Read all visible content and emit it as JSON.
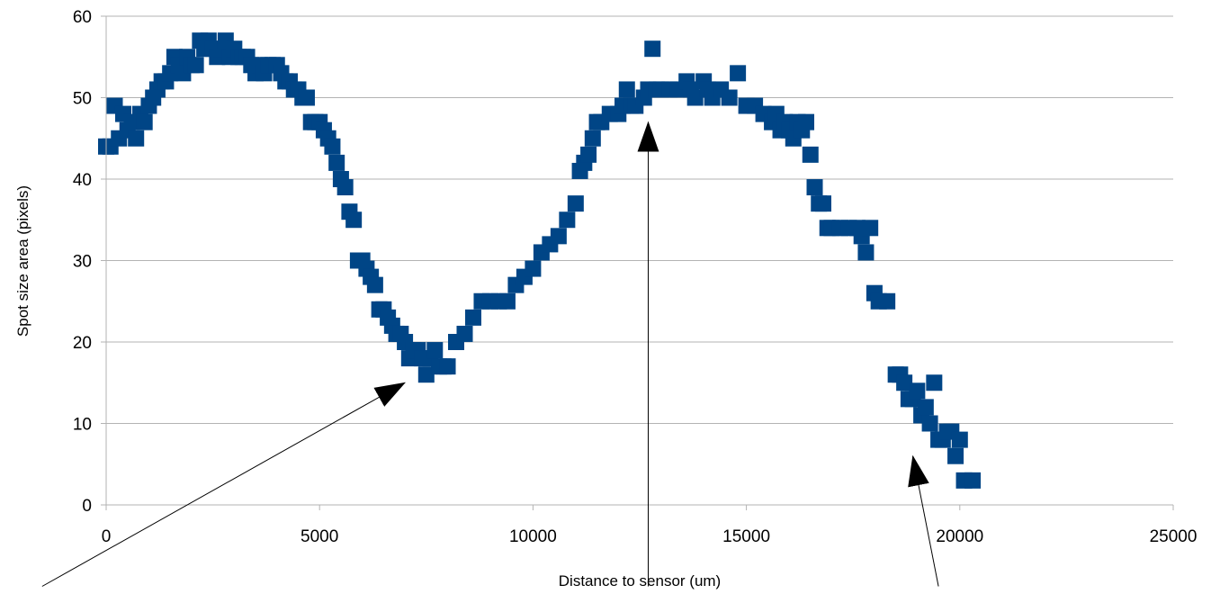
{
  "chart_data": {
    "type": "scatter",
    "title": "",
    "xlabel": "Distance to sensor (um)",
    "ylabel": "Spot size area (pixels)",
    "xlim": [
      0,
      25000
    ],
    "ylim": [
      0,
      60
    ],
    "x_ticks": [
      "0",
      "5000",
      "10000",
      "15000",
      "20000",
      "25000"
    ],
    "y_ticks": [
      "0",
      "10",
      "20",
      "30",
      "40",
      "50",
      "60"
    ],
    "grid": "horizontal",
    "legend": "none",
    "marker": "square",
    "series_color": "#004586",
    "series": [
      {
        "points": [
          [
            0,
            44
          ],
          [
            100,
            44
          ],
          [
            200,
            49
          ],
          [
            300,
            45
          ],
          [
            400,
            48
          ],
          [
            500,
            46
          ],
          [
            600,
            47
          ],
          [
            700,
            45
          ],
          [
            800,
            48
          ],
          [
            900,
            47
          ],
          [
            1000,
            49
          ],
          [
            1100,
            50
          ],
          [
            1200,
            51
          ],
          [
            1300,
            52
          ],
          [
            1400,
            52
          ],
          [
            1500,
            53
          ],
          [
            1600,
            55
          ],
          [
            1700,
            54
          ],
          [
            1800,
            53
          ],
          [
            1900,
            55
          ],
          [
            2000,
            54
          ],
          [
            2100,
            54
          ],
          [
            2200,
            57
          ],
          [
            2300,
            56
          ],
          [
            2400,
            57
          ],
          [
            2500,
            56
          ],
          [
            2600,
            55
          ],
          [
            2700,
            56
          ],
          [
            2800,
            57
          ],
          [
            2900,
            55
          ],
          [
            3000,
            56
          ],
          [
            3100,
            55
          ],
          [
            3200,
            55
          ],
          [
            3300,
            55
          ],
          [
            3400,
            54
          ],
          [
            3500,
            53
          ],
          [
            3600,
            54
          ],
          [
            3700,
            53
          ],
          [
            3800,
            54
          ],
          [
            3900,
            54
          ],
          [
            4000,
            54
          ],
          [
            4100,
            53
          ],
          [
            4200,
            52
          ],
          [
            4300,
            52
          ],
          [
            4400,
            51
          ],
          [
            4500,
            51
          ],
          [
            4600,
            50
          ],
          [
            4700,
            50
          ],
          [
            4800,
            47
          ],
          [
            4900,
            47
          ],
          [
            5000,
            47
          ],
          [
            5100,
            46
          ],
          [
            5200,
            45
          ],
          [
            5300,
            44
          ],
          [
            5400,
            42
          ],
          [
            5500,
            40
          ],
          [
            5600,
            39
          ],
          [
            5700,
            36
          ],
          [
            5800,
            35
          ],
          [
            5900,
            30
          ],
          [
            6000,
            30
          ],
          [
            6100,
            29
          ],
          [
            6200,
            28
          ],
          [
            6300,
            27
          ],
          [
            6400,
            24
          ],
          [
            6500,
            24
          ],
          [
            6600,
            23
          ],
          [
            6700,
            22
          ],
          [
            6800,
            21
          ],
          [
            6900,
            21
          ],
          [
            7000,
            20
          ],
          [
            7100,
            18
          ],
          [
            7200,
            19
          ],
          [
            7300,
            19
          ],
          [
            7400,
            18
          ],
          [
            7500,
            16
          ],
          [
            7600,
            18
          ],
          [
            7700,
            19
          ],
          [
            7800,
            17
          ],
          [
            7900,
            17
          ],
          [
            8000,
            17
          ],
          [
            8200,
            20
          ],
          [
            8400,
            21
          ],
          [
            8600,
            23
          ],
          [
            8800,
            25
          ],
          [
            9000,
            25
          ],
          [
            9200,
            25
          ],
          [
            9400,
            25
          ],
          [
            9600,
            27
          ],
          [
            9800,
            28
          ],
          [
            10000,
            29
          ],
          [
            10200,
            31
          ],
          [
            10400,
            32
          ],
          [
            10600,
            33
          ],
          [
            10800,
            35
          ],
          [
            11000,
            37
          ],
          [
            11100,
            41
          ],
          [
            11200,
            42
          ],
          [
            11300,
            43
          ],
          [
            11400,
            45
          ],
          [
            11500,
            47
          ],
          [
            11600,
            47
          ],
          [
            11800,
            48
          ],
          [
            12000,
            48
          ],
          [
            12100,
            49
          ],
          [
            12200,
            51
          ],
          [
            12300,
            49
          ],
          [
            12400,
            49
          ],
          [
            12600,
            50
          ],
          [
            12700,
            51
          ],
          [
            12800,
            56
          ],
          [
            12900,
            51
          ],
          [
            13000,
            51
          ],
          [
            13200,
            51
          ],
          [
            13400,
            51
          ],
          [
            13600,
            52
          ],
          [
            13700,
            51
          ],
          [
            13800,
            50
          ],
          [
            14000,
            52
          ],
          [
            14100,
            51
          ],
          [
            14200,
            50
          ],
          [
            14400,
            51
          ],
          [
            14600,
            50
          ],
          [
            14800,
            53
          ],
          [
            15000,
            49
          ],
          [
            15200,
            49
          ],
          [
            15400,
            48
          ],
          [
            15600,
            47
          ],
          [
            15700,
            48
          ],
          [
            15800,
            46
          ],
          [
            15900,
            47
          ],
          [
            16000,
            46
          ],
          [
            16100,
            45
          ],
          [
            16200,
            47
          ],
          [
            16300,
            46
          ],
          [
            16400,
            47
          ],
          [
            16500,
            43
          ],
          [
            16600,
            39
          ],
          [
            16700,
            37
          ],
          [
            16800,
            37
          ],
          [
            16900,
            34
          ],
          [
            17000,
            34
          ],
          [
            17200,
            34
          ],
          [
            17400,
            34
          ],
          [
            17600,
            34
          ],
          [
            17700,
            33
          ],
          [
            17800,
            31
          ],
          [
            17900,
            34
          ],
          [
            18000,
            26
          ],
          [
            18100,
            25
          ],
          [
            18300,
            25
          ],
          [
            18500,
            16
          ],
          [
            18600,
            16
          ],
          [
            18700,
            15
          ],
          [
            18800,
            13
          ],
          [
            18900,
            13
          ],
          [
            19000,
            14
          ],
          [
            19100,
            11
          ],
          [
            19200,
            12
          ],
          [
            19300,
            10
          ],
          [
            19400,
            15
          ],
          [
            19500,
            8
          ],
          [
            19600,
            8
          ],
          [
            19700,
            9
          ],
          [
            19800,
            9
          ],
          [
            19900,
            6
          ],
          [
            20000,
            8
          ],
          [
            20100,
            3
          ],
          [
            20300,
            3
          ]
        ]
      }
    ],
    "annotations": [
      {
        "type": "arrow",
        "from": [
          -1500,
          -10
        ],
        "to": [
          7000,
          15
        ]
      },
      {
        "type": "arrow",
        "from": [
          12700,
          -10
        ],
        "to": [
          12700,
          47
        ]
      },
      {
        "type": "arrow",
        "from": [
          19500,
          -10
        ],
        "to": [
          18900,
          6
        ]
      }
    ]
  }
}
